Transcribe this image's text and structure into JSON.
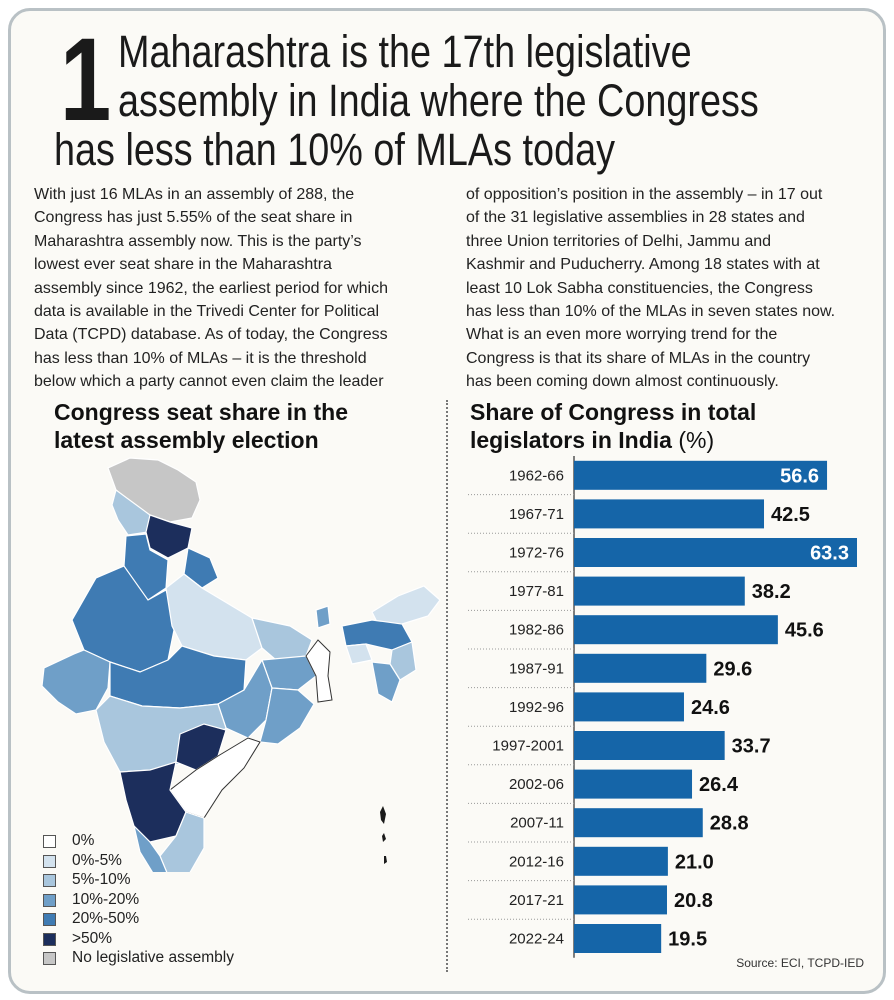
{
  "story": {
    "number": "1",
    "headline_lines": [
      "Maharashtra is the 17th legislative",
      "assembly in India where the Congress",
      "has less than 10% of MLAs today"
    ],
    "body_left_lines": [
      "With just 16 MLAs in an assembly of 288, the",
      "Congress has just 5.55% of the seat share in",
      "Maharashtra assembly now. This is the party’s",
      "lowest ever seat share in the Maharashtra",
      "assembly since 1962, the earliest period for which",
      "data is available in the Trivedi Center for Political",
      "Data (TCPD) database. As of today, the Congress",
      "has less than 10% of MLAs – it is the threshold",
      "below which a party cannot even claim the leader"
    ],
    "body_right_lines": [
      "of opposition’s position in the assembly – in 17 out",
      "of the 31 legislative assemblies in 28 states and",
      "three Union territories of Delhi, Jammu and",
      "Kashmir and Puducherry. Among 18 states with at",
      "least 10 Lok Sabha constituencies, the Congress",
      "has less than 10% of the MLAs in seven states now.",
      "What is an even more worrying trend for the",
      "Congress is that its share of MLAs in the country",
      "has been coming down almost continuously."
    ]
  },
  "map_section": {
    "title_lines": [
      "Congress seat share in the",
      "latest assembly election"
    ],
    "legend": [
      {
        "label": "0%",
        "color": "#ffffff"
      },
      {
        "label": "0%-5%",
        "color": "#d3e2ee"
      },
      {
        "label": "5%-10%",
        "color": "#a9c6dd"
      },
      {
        "label": "10%-20%",
        "color": "#6f9fc8"
      },
      {
        "label": "20%-50%",
        "color": "#3f7bb3"
      },
      {
        "label": ">50%",
        "color": "#1c2e5c"
      },
      {
        "label": "No legislative assembly",
        "color": "#c6c6c6"
      }
    ]
  },
  "chart_section": {
    "title_line1": "Share of Congress in total",
    "title_line2": "legislators in India",
    "title_unit": "(%)"
  },
  "source": "Source: ECI, TCPD-IED",
  "colors": {
    "bar": "#1565a8",
    "label_inside": "#ffffff",
    "label_outside": "#111111"
  },
  "chart_data": {
    "type": "bar",
    "orientation": "horizontal",
    "title": "Share of Congress in total legislators in India (%)",
    "categories": [
      "1962-66",
      "1967-71",
      "1972-76",
      "1977-81",
      "1982-86",
      "1987-91",
      "1992-96",
      "1997-2001",
      "2002-06",
      "2007-11",
      "2012-16",
      "2017-21",
      "2022-24"
    ],
    "values": [
      56.6,
      42.5,
      63.3,
      38.2,
      45.6,
      29.6,
      24.6,
      33.7,
      26.4,
      28.8,
      21.0,
      20.8,
      19.5
    ],
    "value_labels": [
      "56.6",
      "42.5",
      "63.3",
      "38.2",
      "45.6",
      "29.6",
      "24.6",
      "33.7",
      "26.4",
      "28.8",
      "21.0",
      "20.8",
      "19.5"
    ],
    "xlim": [
      0,
      63.3
    ],
    "grid": false
  }
}
